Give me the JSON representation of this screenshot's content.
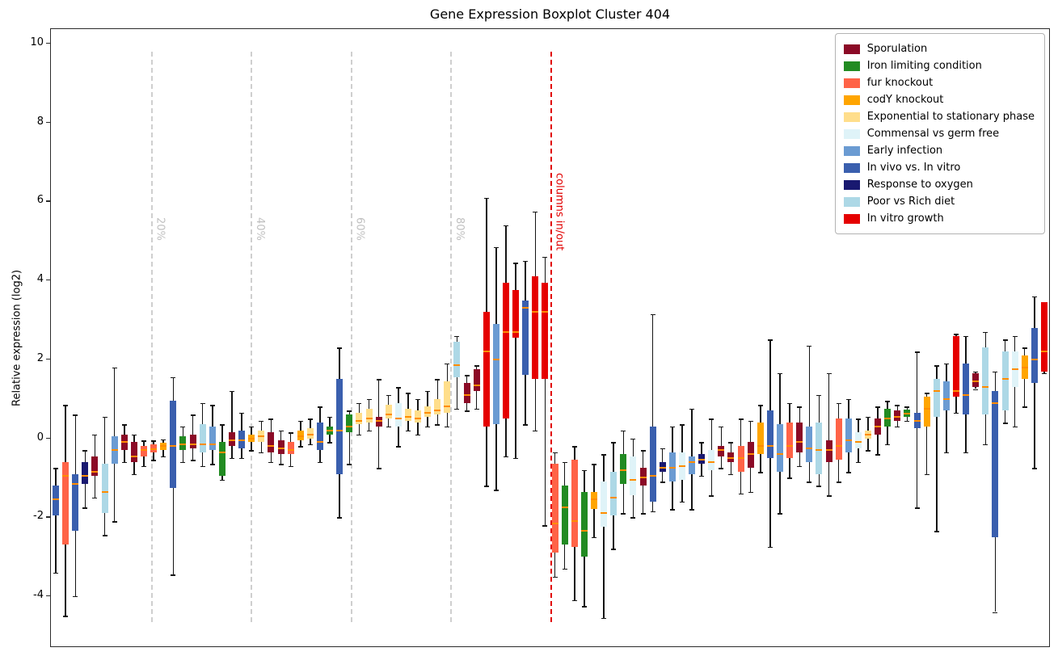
{
  "chart_data": {
    "type": "boxplot",
    "title": "Gene Expression Boxplot Cluster 404",
    "xlabel": "",
    "ylabel": "Relative expression (log2)",
    "ylim": [
      -5.27,
      10.37
    ],
    "yticks": [
      10,
      8,
      6,
      4,
      2,
      0,
      -2,
      -4
    ],
    "grid": false,
    "legend_position": "upper right",
    "median_color": "#FF8C00",
    "whisker_color": "#141414",
    "categories": [
      {
        "key": "spor",
        "label": "Sporulation",
        "color": "#8B0A26"
      },
      {
        "key": "iron",
        "label": "Iron limiting condition",
        "color": "#228B22"
      },
      {
        "key": "fur",
        "label": "fur knockout",
        "color": "#FF6347"
      },
      {
        "key": "cody",
        "label": "codY knockout",
        "color": "#FFA500"
      },
      {
        "key": "exp",
        "label": "Exponential to stationary phase",
        "color": "#FFDE8B"
      },
      {
        "key": "comm",
        "label": "Commensal vs germ free",
        "color": "#DFF3F8"
      },
      {
        "key": "early",
        "label": "Early infection",
        "color": "#6B9BD2"
      },
      {
        "key": "invivo",
        "label": "In vivo vs. In vitro",
        "color": "#3A5FAE"
      },
      {
        "key": "oxy",
        "label": "Response to oxygen",
        "color": "#191970"
      },
      {
        "key": "diet",
        "label": "Poor vs Rich diet",
        "color": "#ADD8E6"
      },
      {
        "key": "vitro",
        "label": "In vitro growth",
        "color": "#E50000"
      }
    ],
    "percent_gridlines": [
      {
        "label": "20%",
        "frac": 0.1
      },
      {
        "label": "40%",
        "frac": 0.2
      },
      {
        "label": "60%",
        "frac": 0.3
      },
      {
        "label": "80%",
        "frac": 0.4
      }
    ],
    "divider": {
      "label": "columns in/out",
      "frac": 0.5,
      "color": "#E10000"
    },
    "boxes": [
      {
        "c": "invivo",
        "v": [
          -3.4,
          -1.95,
          -1.55,
          -1.2,
          -0.75
        ]
      },
      {
        "c": "fur",
        "v": [
          -4.5,
          -2.7,
          -0.95,
          -0.6,
          0.85
        ]
      },
      {
        "c": "invivo",
        "v": [
          -4.0,
          -2.35,
          -1.15,
          -0.9,
          0.6
        ]
      },
      {
        "c": "oxy",
        "v": [
          -1.75,
          -1.15,
          -0.95,
          -0.6,
          -0.3
        ]
      },
      {
        "c": "spor",
        "v": [
          -1.5,
          -0.95,
          -0.85,
          -0.45,
          0.1
        ]
      },
      {
        "c": "diet",
        "v": [
          -2.45,
          -1.9,
          -1.35,
          -0.65,
          0.55
        ]
      },
      {
        "c": "early",
        "v": [
          -2.1,
          -0.65,
          -0.3,
          0.05,
          1.8
        ]
      },
      {
        "c": "spor",
        "v": [
          -0.6,
          -0.3,
          -0.1,
          0.1,
          0.35
        ]
      },
      {
        "c": "spor",
        "v": [
          -0.9,
          -0.6,
          -0.45,
          -0.1,
          0.1
        ]
      },
      {
        "c": "fur",
        "v": [
          -0.7,
          -0.45,
          -0.3,
          -0.2,
          -0.05
        ]
      },
      {
        "c": "fur",
        "v": [
          -0.55,
          -0.35,
          -0.28,
          -0.15,
          -0.05
        ]
      },
      {
        "c": "cody",
        "v": [
          -0.45,
          -0.3,
          -0.2,
          -0.12,
          -0.02
        ]
      },
      {
        "c": "invivo",
        "v": [
          -3.45,
          -1.25,
          -0.2,
          0.95,
          1.55
        ]
      },
      {
        "c": "iron",
        "v": [
          -0.6,
          -0.3,
          -0.15,
          0.05,
          0.3
        ]
      },
      {
        "c": "spor",
        "v": [
          -0.55,
          -0.25,
          -0.15,
          0.1,
          0.6
        ]
      },
      {
        "c": "diet",
        "v": [
          -0.7,
          -0.35,
          -0.15,
          0.35,
          0.9
        ]
      },
      {
        "c": "early",
        "v": [
          -0.65,
          -0.3,
          -0.15,
          0.3,
          0.85
        ]
      },
      {
        "c": "iron",
        "v": [
          -1.05,
          -0.95,
          -0.35,
          -0.1,
          0.35
        ]
      },
      {
        "c": "spor",
        "v": [
          -0.5,
          -0.2,
          -0.05,
          0.15,
          1.2
        ]
      },
      {
        "c": "invivo",
        "v": [
          -0.5,
          -0.25,
          -0.05,
          0.2,
          0.65
        ]
      },
      {
        "c": "cody",
        "v": [
          -0.3,
          -0.1,
          0.0,
          0.1,
          0.3
        ]
      },
      {
        "c": "exp",
        "v": [
          -0.35,
          -0.1,
          0.05,
          0.2,
          0.45
        ]
      },
      {
        "c": "spor",
        "v": [
          -0.6,
          -0.35,
          -0.2,
          0.15,
          0.5
        ]
      },
      {
        "c": "spor",
        "v": [
          -0.65,
          -0.4,
          -0.25,
          -0.05,
          0.2
        ]
      },
      {
        "c": "fur",
        "v": [
          -0.7,
          -0.4,
          -0.3,
          -0.1,
          0.15
        ]
      },
      {
        "c": "cody",
        "v": [
          -0.2,
          -0.05,
          0.05,
          0.2,
          0.45
        ]
      },
      {
        "c": "exp",
        "v": [
          -0.15,
          0.0,
          0.1,
          0.25,
          0.5
        ]
      },
      {
        "c": "invivo",
        "v": [
          -0.6,
          -0.3,
          -0.1,
          0.4,
          0.8
        ]
      },
      {
        "c": "iron",
        "v": [
          -0.1,
          0.1,
          0.2,
          0.3,
          0.55
        ]
      },
      {
        "c": "invivo",
        "v": [
          -2.0,
          -0.9,
          0.2,
          1.5,
          2.3
        ]
      },
      {
        "c": "iron",
        "v": [
          -0.65,
          0.15,
          0.3,
          0.6,
          0.7
        ]
      },
      {
        "c": "exp",
        "v": [
          0.1,
          0.35,
          0.45,
          0.65,
          0.9
        ]
      },
      {
        "c": "exp",
        "v": [
          0.2,
          0.4,
          0.5,
          0.75,
          1.0
        ]
      },
      {
        "c": "spor",
        "v": [
          -0.75,
          0.3,
          0.45,
          0.55,
          1.5
        ]
      },
      {
        "c": "exp",
        "v": [
          0.3,
          0.5,
          0.6,
          0.85,
          1.1
        ]
      },
      {
        "c": "comm",
        "v": [
          -0.2,
          0.3,
          0.5,
          0.9,
          1.3
        ]
      },
      {
        "c": "exp",
        "v": [
          0.2,
          0.45,
          0.55,
          0.75,
          1.15
        ]
      },
      {
        "c": "exp",
        "v": [
          0.1,
          0.4,
          0.5,
          0.7,
          1.0
        ]
      },
      {
        "c": "exp",
        "v": [
          0.3,
          0.55,
          0.65,
          0.8,
          1.2
        ]
      },
      {
        "c": "exp",
        "v": [
          0.35,
          0.6,
          0.7,
          1.0,
          1.5
        ]
      },
      {
        "c": "exp",
        "v": [
          0.3,
          0.65,
          0.8,
          1.45,
          1.9
        ]
      },
      {
        "c": "diet",
        "v": [
          0.75,
          1.55,
          1.85,
          2.45,
          2.6
        ]
      },
      {
        "c": "spor",
        "v": [
          0.7,
          0.9,
          1.1,
          1.4,
          1.6
        ]
      },
      {
        "c": "spor",
        "v": [
          0.75,
          1.2,
          1.35,
          1.75,
          1.85
        ]
      },
      {
        "c": "vitro",
        "v": [
          -1.2,
          0.3,
          2.2,
          3.2,
          6.1
        ]
      },
      {
        "c": "early",
        "v": [
          -1.3,
          0.35,
          2.0,
          2.9,
          4.85
        ]
      },
      {
        "c": "vitro",
        "v": [
          -0.45,
          0.5,
          2.7,
          3.95,
          5.4
        ]
      },
      {
        "c": "vitro",
        "v": [
          -0.5,
          2.55,
          2.7,
          3.75,
          4.45
        ]
      },
      {
        "c": "invivo",
        "v": [
          0.35,
          1.6,
          3.3,
          3.5,
          4.5
        ]
      },
      {
        "c": "vitro",
        "v": [
          0.2,
          1.5,
          3.2,
          4.1,
          5.75
        ]
      },
      {
        "c": "vitro",
        "v": [
          -2.2,
          1.5,
          3.2,
          3.95,
          4.6
        ]
      },
      {
        "c": "fur",
        "v": [
          -3.5,
          -2.9,
          -2.15,
          -0.65,
          -0.35
        ]
      },
      {
        "c": "iron",
        "v": [
          -3.3,
          -2.7,
          -1.75,
          -1.2,
          -0.6
        ]
      },
      {
        "c": "fur",
        "v": [
          -4.1,
          -2.75,
          -2.1,
          -0.55,
          -0.2
        ]
      },
      {
        "c": "iron",
        "v": [
          -4.25,
          -3.0,
          -2.35,
          -1.35,
          -0.8
        ]
      },
      {
        "c": "cody",
        "v": [
          -2.5,
          -1.8,
          -1.55,
          -1.35,
          -0.65
        ]
      },
      {
        "c": "comm",
        "v": [
          -4.55,
          -2.25,
          -1.9,
          -1.1,
          -0.4
        ]
      },
      {
        "c": "diet",
        "v": [
          -2.8,
          -1.95,
          -1.5,
          -0.85,
          -0.1
        ]
      },
      {
        "c": "iron",
        "v": [
          -1.9,
          -1.15,
          -0.8,
          -0.4,
          0.2
        ]
      },
      {
        "c": "comm",
        "v": [
          -2.0,
          -1.45,
          -1.05,
          -0.45,
          0.0
        ]
      },
      {
        "c": "spor",
        "v": [
          -1.9,
          -1.2,
          -1.0,
          -0.75,
          -0.3
        ]
      },
      {
        "c": "invivo",
        "v": [
          -1.85,
          -1.6,
          -0.95,
          0.3,
          3.15
        ]
      },
      {
        "c": "oxy",
        "v": [
          -1.1,
          -0.85,
          -0.75,
          -0.6,
          -0.25
        ]
      },
      {
        "c": "early",
        "v": [
          -1.8,
          -1.1,
          -0.75,
          -0.35,
          0.3
        ]
      },
      {
        "c": "comm",
        "v": [
          -1.6,
          -1.05,
          -0.7,
          -0.35,
          0.35
        ]
      },
      {
        "c": "early",
        "v": [
          -1.8,
          -0.9,
          -0.6,
          -0.45,
          0.75
        ]
      },
      {
        "c": "oxy",
        "v": [
          -0.95,
          -0.65,
          -0.55,
          -0.4,
          -0.1
        ]
      },
      {
        "c": "comm",
        "v": [
          -1.45,
          -0.8,
          -0.6,
          -0.3,
          0.5
        ]
      },
      {
        "c": "spor",
        "v": [
          -0.75,
          -0.45,
          -0.3,
          -0.2,
          0.3
        ]
      },
      {
        "c": "spor",
        "v": [
          -0.9,
          -0.6,
          -0.5,
          -0.35,
          -0.1
        ]
      },
      {
        "c": "fur",
        "v": [
          -1.4,
          -0.85,
          -0.5,
          -0.2,
          0.5
        ]
      },
      {
        "c": "spor",
        "v": [
          -1.35,
          -0.75,
          -0.4,
          -0.1,
          0.45
        ]
      },
      {
        "c": "cody",
        "v": [
          -0.85,
          -0.4,
          -0.2,
          0.4,
          0.85
        ]
      },
      {
        "c": "invivo",
        "v": [
          -2.75,
          -0.5,
          -0.2,
          0.7,
          2.5
        ]
      },
      {
        "c": "early",
        "v": [
          -1.9,
          -0.85,
          -0.4,
          0.35,
          1.65
        ]
      },
      {
        "c": "fur",
        "v": [
          -1.0,
          -0.5,
          -0.2,
          0.4,
          0.9
        ]
      },
      {
        "c": "spor",
        "v": [
          -0.7,
          -0.35,
          -0.1,
          0.4,
          0.8
        ]
      },
      {
        "c": "early",
        "v": [
          -1.1,
          -0.6,
          -0.25,
          0.3,
          2.35
        ]
      },
      {
        "c": "diet",
        "v": [
          -1.2,
          -0.9,
          -0.3,
          0.4,
          1.1
        ]
      },
      {
        "c": "spor",
        "v": [
          -1.45,
          -0.6,
          -0.3,
          -0.05,
          1.65
        ]
      },
      {
        "c": "fur",
        "v": [
          -1.1,
          -0.55,
          -0.2,
          0.5,
          0.9
        ]
      },
      {
        "c": "early",
        "v": [
          -0.85,
          -0.35,
          -0.05,
          0.5,
          1.0
        ]
      },
      {
        "c": "comm",
        "v": [
          -0.6,
          -0.25,
          -0.1,
          0.15,
          0.5
        ]
      },
      {
        "c": "exp",
        "v": [
          -0.3,
          0.0,
          0.1,
          0.2,
          0.55
        ]
      },
      {
        "c": "spor",
        "v": [
          -0.4,
          0.1,
          0.3,
          0.5,
          0.8
        ]
      },
      {
        "c": "iron",
        "v": [
          -0.15,
          0.3,
          0.5,
          0.75,
          0.95
        ]
      },
      {
        "c": "spor",
        "v": [
          0.3,
          0.45,
          0.55,
          0.7,
          0.85
        ]
      },
      {
        "c": "iron",
        "v": [
          0.45,
          0.55,
          0.62,
          0.72,
          0.8
        ]
      },
      {
        "c": "invivo",
        "v": [
          -1.75,
          0.25,
          0.45,
          0.65,
          2.2
        ]
      },
      {
        "c": "cody",
        "v": [
          -0.9,
          0.3,
          0.75,
          1.05,
          1.15
        ]
      },
      {
        "c": "diet",
        "v": [
          -2.35,
          0.55,
          1.2,
          1.5,
          1.85
        ]
      },
      {
        "c": "early",
        "v": [
          -0.35,
          0.7,
          1.0,
          1.45,
          1.9
        ]
      },
      {
        "c": "vitro",
        "v": [
          0.65,
          1.05,
          1.2,
          2.6,
          2.65
        ]
      },
      {
        "c": "invivo",
        "v": [
          -0.35,
          0.6,
          1.1,
          1.9,
          2.6
        ]
      },
      {
        "c": "spor",
        "v": [
          1.25,
          1.3,
          1.45,
          1.65,
          1.7
        ]
      },
      {
        "c": "diet",
        "v": [
          -0.15,
          0.6,
          1.3,
          2.3,
          2.7
        ]
      },
      {
        "c": "invivo",
        "v": [
          -4.4,
          -2.5,
          0.9,
          1.2,
          1.7
        ]
      },
      {
        "c": "diet",
        "v": [
          0.4,
          0.7,
          1.5,
          2.2,
          2.5
        ]
      },
      {
        "c": "comm",
        "v": [
          0.3,
          1.3,
          1.75,
          2.2,
          2.6
        ]
      },
      {
        "c": "cody",
        "v": [
          0.8,
          1.5,
          1.8,
          2.1,
          2.3
        ]
      },
      {
        "c": "invivo",
        "v": [
          -0.75,
          1.4,
          2.0,
          2.8,
          3.6
        ]
      },
      {
        "c": "vitro",
        "v": [
          1.65,
          1.7,
          2.2,
          3.45,
          3.45
        ]
      }
    ]
  }
}
